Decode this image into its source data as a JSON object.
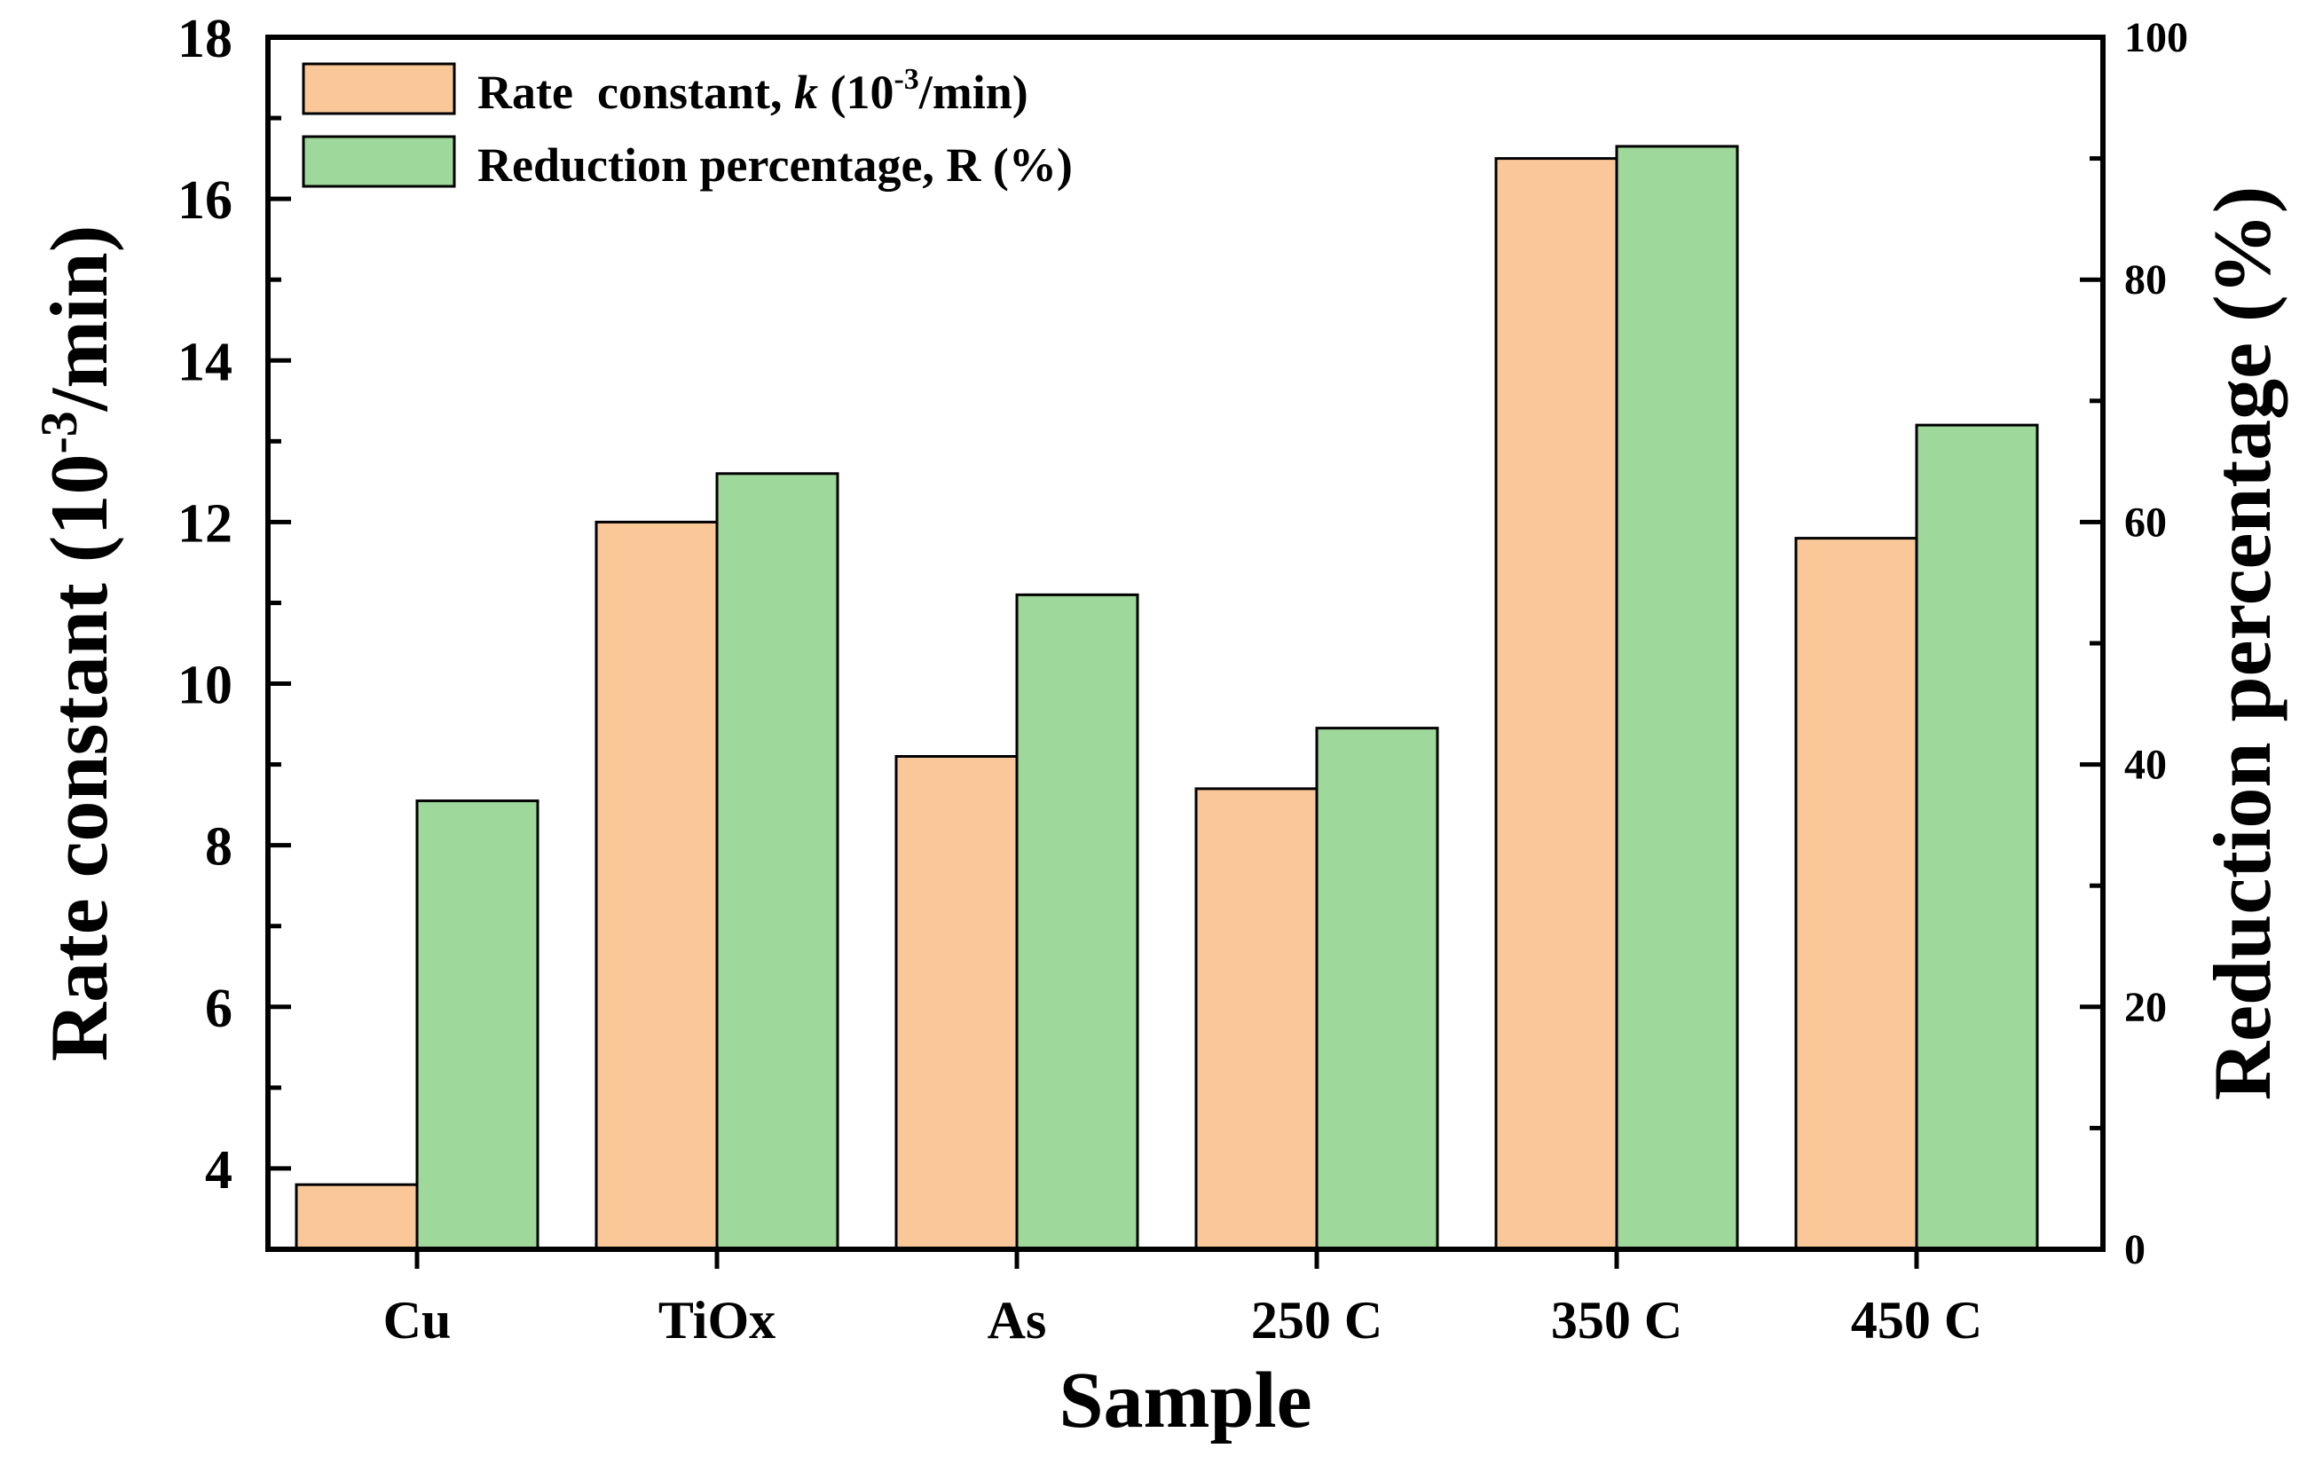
{
  "chart_data": {
    "type": "bar",
    "categories": [
      "Cu",
      "TiOx",
      "As",
      "250  C",
      "350  C",
      "450  C"
    ],
    "series": [
      {
        "name": "Rate  constant, ",
        "name_italic": "k",
        "name_tail_pre": " (10",
        "name_sup": "-3",
        "name_tail_post": "/min)",
        "axis": "left",
        "color": "#FAC898",
        "values": [
          3.8,
          12.0,
          9.1,
          8.7,
          16.5,
          11.8
        ]
      },
      {
        "name": "Reduction percentage, R (%)",
        "axis": "right",
        "color": "#9ED89A",
        "values": [
          37,
          64,
          54,
          43,
          91,
          68
        ]
      }
    ],
    "title": "",
    "xlabel": "Sample",
    "ylabel_left_pre": "Rate constant (10",
    "ylabel_left_sup": "-3",
    "ylabel_left_post": "/min)",
    "ylabel_right": "Reduction percentage (%)",
    "ylim_left": [
      3,
      18
    ],
    "ylim_right": [
      0,
      100
    ],
    "yticks_left": [
      4,
      6,
      8,
      10,
      12,
      14,
      16,
      18
    ],
    "yticks_right": [
      0,
      20,
      40,
      60,
      80,
      100
    ],
    "grid": false,
    "legend_position": "top-left"
  }
}
